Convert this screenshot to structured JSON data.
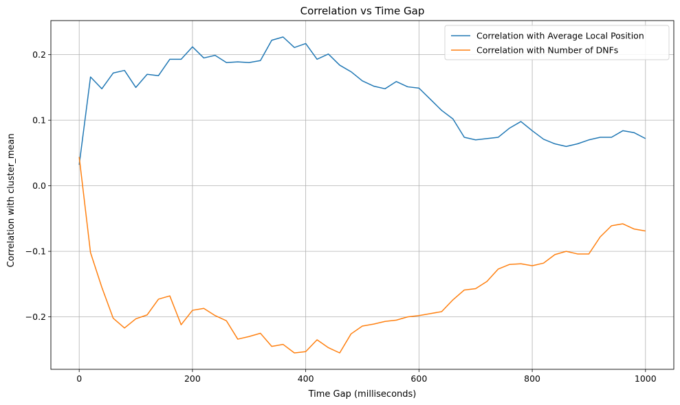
{
  "chart_data": {
    "type": "line",
    "title": "Correlation vs Time Gap",
    "xlabel": "Time Gap (milliseconds)",
    "ylabel": "Correlation with cluster_mean",
    "xlim": [
      -50,
      1050
    ],
    "ylim": [
      -0.28,
      0.252
    ],
    "xticks": [
      0,
      200,
      400,
      600,
      800,
      1000
    ],
    "xtick_labels": [
      "0",
      "200",
      "400",
      "600",
      "800",
      "1000"
    ],
    "yticks": [
      -0.2,
      -0.1,
      0.0,
      0.1,
      0.2
    ],
    "ytick_labels": [
      "−0.2",
      "−0.1",
      "0.0",
      "0.1",
      "0.2"
    ],
    "grid": true,
    "legend_position": "top-right",
    "x": [
      0,
      20,
      40,
      60,
      80,
      100,
      120,
      140,
      160,
      180,
      200,
      220,
      240,
      260,
      280,
      300,
      320,
      340,
      360,
      380,
      400,
      420,
      440,
      460,
      480,
      500,
      520,
      540,
      560,
      580,
      600,
      620,
      640,
      660,
      680,
      700,
      720,
      740,
      760,
      780,
      800,
      820,
      840,
      860,
      880,
      900,
      920,
      940,
      960,
      980,
      1000
    ],
    "series": [
      {
        "name": "Correlation with Average Local Position",
        "color": "#1f77b4",
        "values": [
          0.032,
          0.166,
          0.148,
          0.172,
          0.176,
          0.15,
          0.17,
          0.168,
          0.193,
          0.193,
          0.212,
          0.195,
          0.199,
          0.188,
          0.189,
          0.188,
          0.191,
          0.222,
          0.227,
          0.211,
          0.217,
          0.193,
          0.201,
          0.184,
          0.174,
          0.16,
          0.152,
          0.148,
          0.159,
          0.151,
          0.149,
          0.132,
          0.115,
          0.102,
          0.074,
          0.07,
          0.072,
          0.074,
          0.088,
          0.098,
          0.084,
          0.071,
          0.064,
          0.06,
          0.064,
          0.07,
          0.074,
          0.074,
          0.084,
          0.081,
          0.072
        ]
      },
      {
        "name": "Correlation with Number of DNFs",
        "color": "#ff7f0e",
        "values": [
          0.044,
          -0.102,
          -0.155,
          -0.202,
          -0.217,
          -0.203,
          -0.197,
          -0.173,
          -0.168,
          -0.212,
          -0.19,
          -0.187,
          -0.198,
          -0.206,
          -0.234,
          -0.23,
          -0.225,
          -0.245,
          -0.242,
          -0.255,
          -0.253,
          -0.235,
          -0.247,
          -0.255,
          -0.226,
          -0.214,
          -0.211,
          -0.207,
          -0.205,
          -0.2,
          -0.198,
          -0.195,
          -0.192,
          -0.174,
          -0.159,
          -0.157,
          -0.146,
          -0.127,
          -0.12,
          -0.119,
          -0.122,
          -0.118,
          -0.105,
          -0.1,
          -0.104,
          -0.104,
          -0.078,
          -0.061,
          -0.058,
          -0.066,
          -0.069
        ]
      }
    ]
  }
}
